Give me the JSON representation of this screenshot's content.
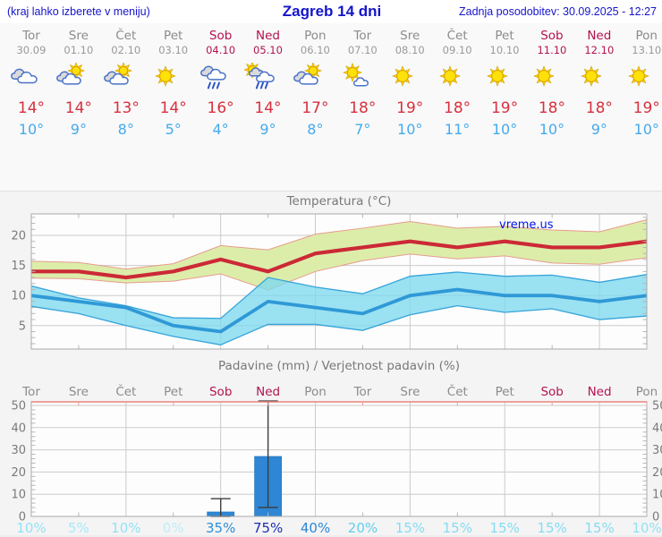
{
  "header": {
    "left_note": "(kraj lahko izberete v meniju)",
    "title": "Zagreb 14 dni",
    "updated": "Zadnja posodobitev: 30.09.2025 - 12:27"
  },
  "colors": {
    "weekday_label": "#8b8b8b",
    "weekend_label": "#b3134f",
    "max_temp_text": "#d8303f",
    "min_temp_text": "#45aaec",
    "header_blue": "#1414cc",
    "axis_gray": "#7a7a7a",
    "watermark_blue": "#0014e8",
    "bar_blue": "#2e86d4",
    "max_line": "#cc2936",
    "min_line": "#2f99d6",
    "max_band_fill": "#dcedaa",
    "max_band_edge": "#e89b8d",
    "min_band_fill": "#7dd8ee",
    "min_band_edge": "#36a3da",
    "precip_top_border": "#e8837d"
  },
  "days": [
    {
      "name": "Tor",
      "date": "30.09",
      "weekend": false,
      "icon": "cloudy",
      "max": "14°",
      "min": "10°",
      "prob": "10%",
      "prob_color": "#93e2f5"
    },
    {
      "name": "Sre",
      "date": "01.10",
      "weekend": false,
      "icon": "partly-cloudy",
      "max": "14°",
      "min": "9°",
      "prob": "5%",
      "prob_color": "#a8e9f7"
    },
    {
      "name": "Čet",
      "date": "02.10",
      "weekend": false,
      "icon": "partly-cloudy",
      "max": "13°",
      "min": "8°",
      "prob": "10%",
      "prob_color": "#93e2f5"
    },
    {
      "name": "Pet",
      "date": "03.10",
      "weekend": false,
      "icon": "sunny",
      "max": "14°",
      "min": "5°",
      "prob": "0%",
      "prob_color": "#bceef9"
    },
    {
      "name": "Sob",
      "date": "04.10",
      "weekend": true,
      "icon": "rain",
      "max": "16°",
      "min": "4°",
      "prob": "35%",
      "prob_color": "#2f8fd8"
    },
    {
      "name": "Ned",
      "date": "05.10",
      "weekend": true,
      "icon": "sun-rain",
      "max": "14°",
      "min": "9°",
      "prob": "75%",
      "prob_color": "#1c2fae"
    },
    {
      "name": "Pon",
      "date": "06.10",
      "weekend": false,
      "icon": "partly-cloudy",
      "max": "17°",
      "min": "8°",
      "prob": "40%",
      "prob_color": "#2c88d6"
    },
    {
      "name": "Tor",
      "date": "07.10",
      "weekend": false,
      "icon": "mostly-sunny",
      "max": "18°",
      "min": "7°",
      "prob": "20%",
      "prob_color": "#62cfee"
    },
    {
      "name": "Sre",
      "date": "08.10",
      "weekend": false,
      "icon": "sunny",
      "max": "19°",
      "min": "10°",
      "prob": "15%",
      "prob_color": "#84dcf3"
    },
    {
      "name": "Čet",
      "date": "09.10",
      "weekend": false,
      "icon": "sunny",
      "max": "18°",
      "min": "11°",
      "prob": "15%",
      "prob_color": "#84dcf3"
    },
    {
      "name": "Pet",
      "date": "10.10",
      "weekend": false,
      "icon": "sunny",
      "max": "19°",
      "min": "10°",
      "prob": "15%",
      "prob_color": "#84dcf3"
    },
    {
      "name": "Sob",
      "date": "11.10",
      "weekend": true,
      "icon": "sunny",
      "max": "18°",
      "min": "10°",
      "prob": "15%",
      "prob_color": "#84dcf3"
    },
    {
      "name": "Ned",
      "date": "12.10",
      "weekend": true,
      "icon": "sunny",
      "max": "18°",
      "min": "9°",
      "prob": "15%",
      "prob_color": "#84dcf3"
    },
    {
      "name": "Pon",
      "date": "13.10",
      "weekend": false,
      "icon": "sunny",
      "max": "19°",
      "min": "10°",
      "prob": "10%",
      "prob_color": "#93e2f5"
    }
  ],
  "chart_data": [
    {
      "type": "line",
      "title": "Temperatura (°C)",
      "watermark": "vreme.us",
      "categories": [
        "Tor 30.09",
        "Sre 01.10",
        "Čet 02.10",
        "Pet 03.10",
        "Sob 04.10",
        "Ned 05.10",
        "Pon 06.10",
        "Tor 07.10",
        "Sre 08.10",
        "Čet 09.10",
        "Pet 10.10",
        "Sob 11.10",
        "Ned 12.10",
        "Pon 13.10"
      ],
      "yticks": [
        5,
        10,
        15,
        20
      ],
      "ylim": [
        1.1,
        23.6
      ],
      "vgrid_day_indexes": [
        2,
        4,
        6,
        8,
        10,
        12
      ],
      "legend": "none",
      "series": [
        {
          "name": "max_temp",
          "color": "#cc2936",
          "values": [
            14,
            14,
            13,
            14,
            16,
            14,
            17,
            18,
            19,
            18,
            19,
            18,
            18,
            19
          ]
        },
        {
          "name": "min_temp",
          "color": "#2f99d6",
          "values": [
            10,
            9,
            8,
            5,
            4,
            9,
            8,
            7,
            10,
            11,
            10,
            10,
            9,
            10
          ]
        },
        {
          "name": "max_band_upper",
          "color": "#dcedaa",
          "values": [
            15.7,
            15.5,
            14.4,
            15.3,
            18.3,
            17.6,
            20.2,
            21.2,
            22.3,
            21.2,
            21.5,
            20.9,
            20.6,
            22.6
          ]
        },
        {
          "name": "max_band_lower",
          "color": "#dcedaa",
          "values": [
            12.9,
            12.8,
            12.1,
            12.4,
            13.6,
            10.9,
            14.0,
            15.8,
            16.9,
            16.1,
            16.6,
            15.4,
            15.2,
            16.3
          ]
        },
        {
          "name": "min_band_upper",
          "color": "#a5e6f2",
          "values": [
            11.6,
            9.6,
            8.3,
            6.3,
            6.2,
            13.0,
            11.4,
            10.3,
            13.2,
            13.9,
            13.2,
            13.4,
            12.2,
            13.5
          ]
        },
        {
          "name": "min_band_lower",
          "color": "#a5e6f2",
          "values": [
            8.2,
            7.0,
            5.0,
            3.2,
            1.8,
            5.2,
            5.2,
            4.2,
            6.8,
            8.3,
            7.2,
            7.8,
            6.0,
            6.6
          ]
        }
      ]
    },
    {
      "type": "bar",
      "title": "Padavine (mm) / Verjetnost padavin (%)",
      "categories": [
        "Tor",
        "Sre",
        "Čet",
        "Pet",
        "Sob",
        "Ned",
        "Pon",
        "Tor",
        "Sre",
        "Čet",
        "Pet",
        "Sob",
        "Ned",
        "Pon"
      ],
      "values": [
        0,
        0,
        0,
        0,
        2,
        27,
        0,
        0,
        0,
        0,
        0,
        0,
        0,
        0
      ],
      "whiskers": [
        null,
        null,
        null,
        null,
        [
          0,
          8
        ],
        [
          4,
          52
        ],
        null,
        null,
        null,
        null,
        null,
        null,
        null,
        null
      ],
      "probabilities_pct": [
        10,
        5,
        10,
        0,
        35,
        75,
        40,
        20,
        15,
        15,
        15,
        15,
        15,
        10
      ],
      "yticks": [
        0,
        10,
        20,
        30,
        40,
        50
      ],
      "ylim": [
        0,
        51.6
      ],
      "vgrid_day_indexes": [
        2,
        4,
        6,
        8,
        10,
        12
      ],
      "bar_color": "#2e86d4"
    }
  ]
}
